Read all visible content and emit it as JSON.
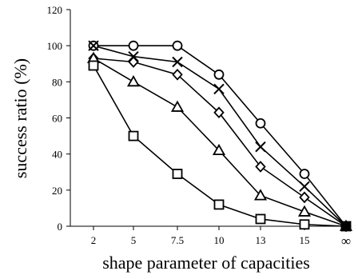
{
  "chart_data": {
    "type": "line",
    "title": "",
    "xlabel": "shape parameter of capacities",
    "ylabel": "success ratio (%)",
    "categories": [
      "2",
      "5",
      "7.5",
      "10",
      "13",
      "15",
      "∞"
    ],
    "ylim": [
      0,
      120
    ],
    "yticks": [
      "0",
      "20",
      "40",
      "60",
      "80",
      "100",
      "120"
    ],
    "grid": false,
    "legend": "none",
    "series": [
      {
        "marker": "circle",
        "values": [
          100,
          100,
          100,
          84,
          57,
          29,
          0
        ]
      },
      {
        "marker": "cross",
        "values": [
          100,
          94,
          91,
          76,
          44,
          22,
          0
        ]
      },
      {
        "marker": "diamond",
        "values": [
          93,
          91,
          84,
          63,
          33,
          16,
          0
        ]
      },
      {
        "marker": "triangle",
        "values": [
          93,
          80,
          66,
          42,
          17,
          8,
          0
        ]
      },
      {
        "marker": "square",
        "values": [
          89,
          50,
          29,
          12,
          4,
          1,
          0
        ]
      }
    ],
    "colors": {
      "line": "#000000",
      "marker_fill": "#ffffff",
      "background": "#ffffff"
    }
  }
}
